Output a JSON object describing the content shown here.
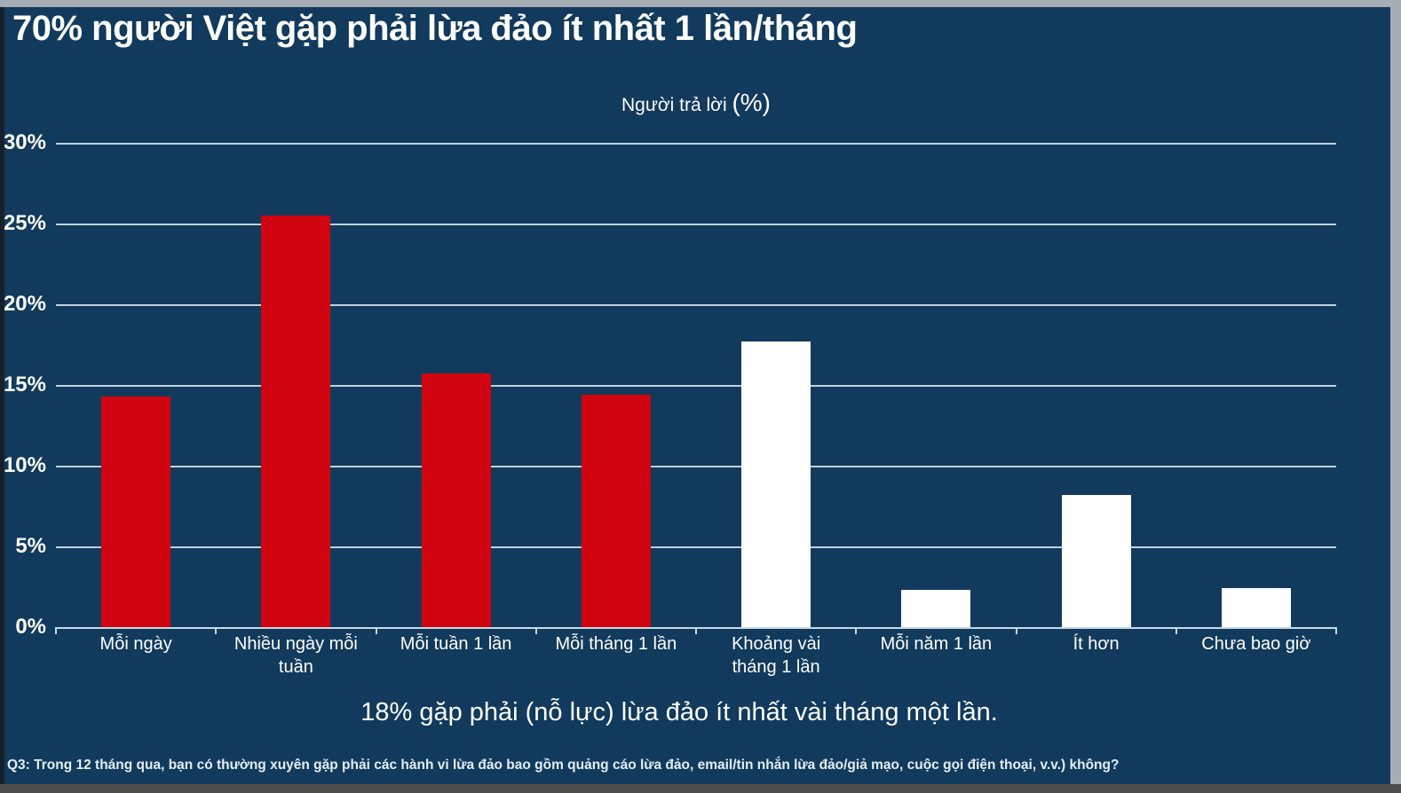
{
  "frame": {
    "background_color": "#113A5C",
    "top_strip_color": "#A6ADB4",
    "right_strip_color": "#A6ADB4",
    "bottom_strip_color": "#4E4E4E",
    "gridline_color": "#C9D9E5",
    "text_color": "#FFFFFF",
    "accent_red": "#D10411"
  },
  "chart_data": {
    "type": "bar",
    "title": "70% người Việt gặp phải lừa đảo ít nhất 1 lần/tháng",
    "axis_title": "Người trả lời ",
    "axis_title_suffix": "(%)",
    "categories": [
      "Mỗi ngày",
      "Nhiều ngày mỗi tuần",
      "Mỗi tuần 1 lần",
      "Mỗi tháng 1 lần",
      "Khoảng vài\ntháng 1 lần",
      "Mỗi năm 1 lần",
      "Ít hơn",
      "Chưa bao giờ"
    ],
    "values": [
      14.3,
      25.5,
      15.7,
      14.4,
      17.7,
      2.3,
      8.2,
      2.4
    ],
    "bar_colors": [
      "#D10411",
      "#D10411",
      "#D10411",
      "#D10411",
      "#FFFFFF",
      "#FFFFFF",
      "#FFFFFF",
      "#FFFFFF"
    ],
    "ylim": [
      0,
      30
    ],
    "ytick_step": 5,
    "ytick_labels": [
      "0%",
      "5%",
      "10%",
      "15%",
      "20%",
      "25%",
      "30%"
    ],
    "grid": true,
    "legend": null,
    "xlabel": "",
    "ylabel": "Người trả lời (%)",
    "annotation": "18% gặp phải (nỗ lực) lừa đảo ít nhất vài tháng một lần.",
    "footnote": "Q3: Trong 12 tháng qua, bạn có thường xuyên gặp phải các hành vi lừa đảo bao gồm quảng cáo lừa đảo, email/tin nhắn lừa đảo/giả mạo, cuộc gọi điện thoại, v.v.) không?"
  }
}
